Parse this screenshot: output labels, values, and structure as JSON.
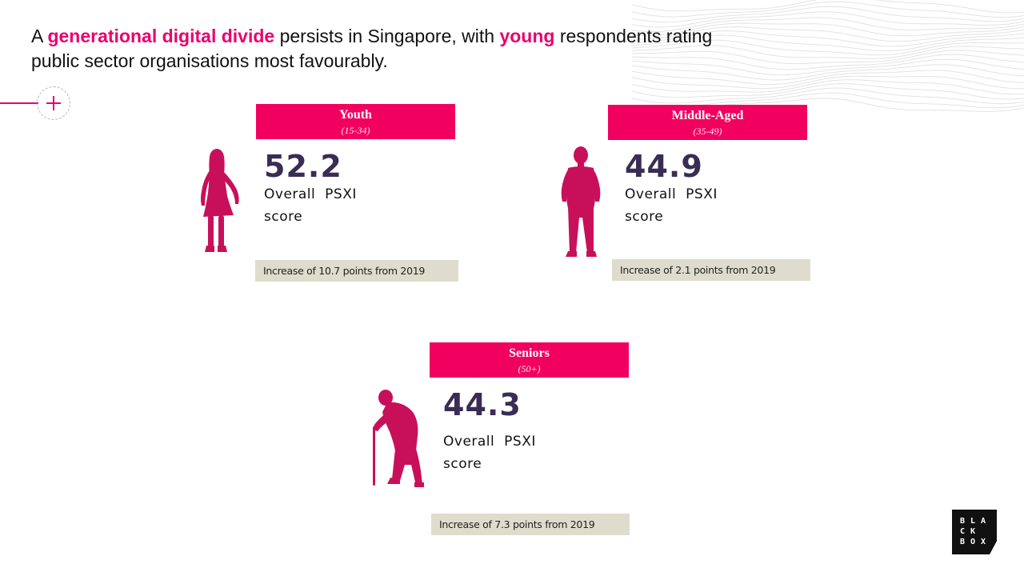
{
  "headline": {
    "part1": "A ",
    "highlight1": "generational digital divide",
    "part2": " persists in Singapore, with ",
    "highlight2": "young",
    "part3": " respondents rating public sector organisations most favourably."
  },
  "groups": [
    {
      "name": "Youth",
      "age_range": "(15-34)",
      "score": "52.2",
      "score_label": "Overall PSXI score",
      "increase_text": "Increase of 10.7 points from 2019",
      "figure_icon": "young-woman-silhouette-icon"
    },
    {
      "name": "Middle-Aged",
      "age_range": "(35-49)",
      "score": "44.9",
      "score_label": "Overall PSXI score",
      "increase_text": "Increase of 2.1 points from 2019",
      "figure_icon": "man-silhouette-icon"
    },
    {
      "name": "Seniors",
      "age_range": "(50+)",
      "score": "44.3",
      "score_label": "Overall PSXI score",
      "increase_text": "Increase of 7.3  points from 2019",
      "figure_icon": "elderly-person-with-cane-silhouette-icon"
    }
  ],
  "logo": {
    "row1": "BLA",
    "row2": "CK",
    "row3": "BOX"
  },
  "colors": {
    "accent": "#e8006e",
    "header_bg": "#f2005f",
    "figure": "#c8105a",
    "score_text": "#3a2d54",
    "increase_bg": "#deddcd"
  }
}
